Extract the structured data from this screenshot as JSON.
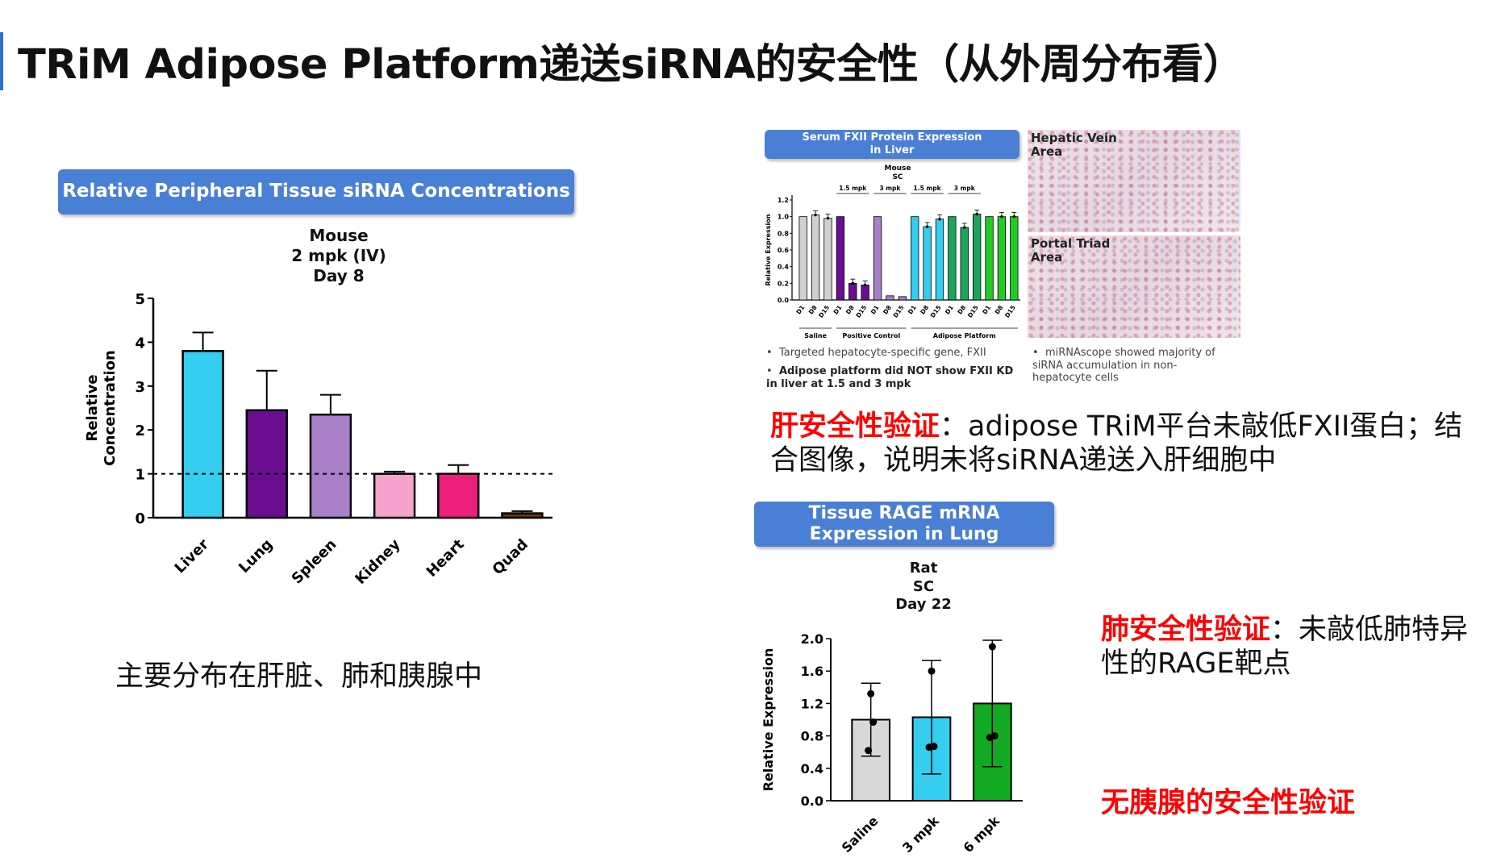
{
  "title": "TRiM Adipose Platform递送siRNA的安全性（从外周分布看）",
  "chart_data": [
    {
      "type": "bar",
      "banner": "Relative Peripheral Tissue siRNA Concentrations",
      "subtitle": [
        "Mouse",
        "2 mpk (IV)",
        "Day 8"
      ],
      "ylabel": [
        "Relative",
        "Concentration"
      ],
      "ylim": [
        0,
        5
      ],
      "yticks": [
        "0",
        "1",
        "2",
        "3",
        "4",
        "5"
      ],
      "reference_line": 1,
      "categories": [
        "Liver",
        "Lung",
        "Spleen",
        "Kidney",
        "Heart",
        "Quad"
      ],
      "values": [
        3.8,
        2.45,
        2.35,
        1.0,
        1.0,
        0.1
      ],
      "errors": [
        0.42,
        0.9,
        0.45,
        0.05,
        0.2,
        0.05
      ],
      "colors": [
        "#35cdf0",
        "#6a0d91",
        "#a97fc8",
        "#f5a3cc",
        "#ec1f7a",
        "#6b3410"
      ]
    },
    {
      "type": "bar",
      "banner": [
        "Serum FXII Protein Expression",
        "in Liver"
      ],
      "subtitle": [
        "Mouse",
        "SC"
      ],
      "ylabel": "Relative Expression",
      "ylim": [
        0,
        1.2
      ],
      "yticks": [
        "0.0",
        "0.2",
        "0.4",
        "0.6",
        "0.8",
        "1.0",
        "1.2"
      ],
      "dose_labels": [
        "1.5 mpk",
        "3 mpk",
        "1.5 mpk",
        "3 mpk"
      ],
      "categories": [
        "D1",
        "D8",
        "D15",
        "D1",
        "D8",
        "D15",
        "D1",
        "D8",
        "D15",
        "D1",
        "D8",
        "D15",
        "D1",
        "D8",
        "D15",
        "D1",
        "D8",
        "D15"
      ],
      "values": [
        1.0,
        1.02,
        0.98,
        1.0,
        0.2,
        0.18,
        1.0,
        0.05,
        0.04,
        1.0,
        0.88,
        0.97,
        1.0,
        0.87,
        1.03,
        1.0,
        1.0,
        1.0
      ],
      "groups": [
        "Saline",
        "Positive  Control",
        "Adipose Platform"
      ],
      "colors": [
        "#d0d0d0",
        "#d0d0d0",
        "#d0d0d0",
        "#6a0d91",
        "#6a0d91",
        "#6a0d91",
        "#a97fc8",
        "#a97fc8",
        "#a97fc8",
        "#35cdf0",
        "#35cdf0",
        "#35cdf0",
        "#1aa65a",
        "#1aa65a",
        "#1aa65a",
        "#22cc22",
        "#22cc22",
        "#22cc22"
      ]
    },
    {
      "type": "bar",
      "banner": [
        "Tissue RAGE mRNA",
        "Expression in Lung"
      ],
      "subtitle": [
        "Rat",
        "SC",
        "Day 22"
      ],
      "ylabel": "Relative Expression",
      "ylim": [
        0,
        2.0
      ],
      "yticks": [
        "0.0",
        "0.4",
        "0.8",
        "1.2",
        "1.6",
        "2.0"
      ],
      "categories": [
        "Saline",
        "3 mpk",
        "6 mpk"
      ],
      "values": [
        1.0,
        1.03,
        1.2
      ],
      "errors": [
        0.45,
        0.7,
        0.78
      ],
      "points": [
        [
          0.62,
          0.97,
          1.32
        ],
        [
          0.66,
          0.67,
          1.6
        ],
        [
          0.78,
          0.8,
          1.9
        ]
      ],
      "colors": [
        "#d8d8d8",
        "#35cdf0",
        "#11aa22"
      ]
    }
  ],
  "captions": {
    "left": "主要分布在肝脏、肺和胰腺中",
    "liver_label": "肝安全性验证",
    "liver_text": "：adipose TRiM平台未敲低FXII蛋白；结合图像，说明未将siRNA递送入肝细胞中",
    "lung_label": "肺安全性验证",
    "lung_text": "：未敲低肺特异性的RAGE靶点",
    "pancreas": "无胰腺的安全性验证"
  },
  "histology": {
    "top_label": [
      "Hepatic Vein",
      "Area"
    ],
    "bottom_label": [
      "Portal Triad",
      "Area"
    ]
  },
  "bullets": {
    "b1": "Targeted hepatocyte-specific gene, FXII",
    "b2": "Adipose platform did NOT show FXII KD in liver at 1.5 and 3 mpk",
    "b3": "miRNAscope showed majority of siRNA accumulation in non-hepatocyte cells"
  }
}
